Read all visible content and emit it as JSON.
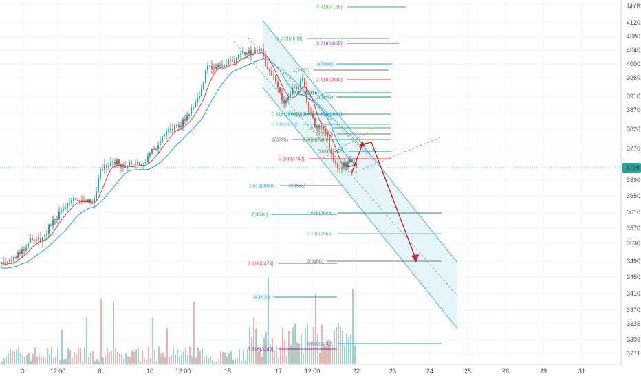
{
  "chart_data": {
    "type": "candlestick",
    "currency": "MYR",
    "current_price_label": "3720",
    "x_tick_labels": [
      "3",
      "12:00",
      "8",
      "10",
      "12:00",
      "15",
      "17",
      "12:00",
      "22",
      "23",
      "24",
      "25",
      "26",
      "29",
      "31"
    ],
    "y_tick_labels": [
      "4120",
      "4080",
      "4040",
      "4000",
      "3960",
      "3910",
      "3870",
      "3820",
      "3770",
      "3720",
      "3690",
      "3650",
      "3610",
      "3570",
      "3530",
      "3490",
      "3450",
      "3410",
      "3370",
      "3335",
      "3303",
      "3271"
    ],
    "y_ticks": [
      4120,
      4080,
      4040,
      4000,
      3960,
      3910,
      3870,
      3820,
      3770,
      3720,
      3690,
      3650,
      3610,
      3570,
      3530,
      3490,
      3450,
      3410,
      3370,
      3335,
      3303,
      3271
    ],
    "fib_levels": [
      {
        "label": "4.618(4159)",
        "color": "#4caf50"
      },
      {
        "label": "1.272(4069)",
        "color": "#4caf50"
      },
      {
        "label": "3.618(4059)",
        "color": "#9c27b0"
      },
      {
        "label": "1(3983)",
        "color": "#787b86"
      },
      {
        "label": "3(3998)",
        "color": "#2196f3"
      },
      {
        "label": "2.618(3960)",
        "color": "#f23645"
      },
      {
        "label": "0.618(3915)",
        "color": "#089981"
      },
      {
        "label": "2(3899)",
        "color": "#089981"
      },
      {
        "label": "0.618(3862)",
        "color": "#089981"
      },
      {
        "label": "0.618(3862)",
        "color": "#089981"
      },
      {
        "label": "1.618(3863)",
        "color": "#2196f3"
      },
      {
        "label": "0.786(3829)",
        "color": "#64b5f6"
      },
      {
        "label": "0.5(3825)",
        "color": "#4caf50"
      },
      {
        "label": "0(3800)",
        "color": "#787b86"
      },
      {
        "label": "1(3788)",
        "color": "#787b86"
      },
      {
        "label": "0.382(3788)",
        "color": "#4caf50"
      },
      {
        "label": "0.618(3762)",
        "color": "#089981"
      },
      {
        "label": "0.236(3742)",
        "color": "#f23645"
      },
      {
        "label": "1.618(3668)",
        "color": "#2196f3"
      },
      {
        "label": "0(3668)",
        "color": "#787b86"
      },
      {
        "label": "0.618(3606)",
        "color": "#089981"
      },
      {
        "label": "2(3594)",
        "color": "#089981"
      },
      {
        "label": "0.786(3553)",
        "color": "#64b5f6"
      },
      {
        "label": "1(3486)",
        "color": "#787b86"
      },
      {
        "label": "2.618(3474)",
        "color": "#f23645"
      },
      {
        "label": "3(3400)",
        "color": "#2196f3"
      },
      {
        "label": "1.618(3292)",
        "color": "#2196f3"
      },
      {
        "label": "3.618(3280)",
        "color": "#9c27b0"
      }
    ],
    "colors": {
      "up": "#26a69a",
      "down": "#ef5350",
      "ma_fast": "#e53935",
      "ma_slow": "#2196f3",
      "channel_fill": "#e6f6f8",
      "arrow": "#c62828",
      "grid": "#f0f3fa"
    }
  }
}
